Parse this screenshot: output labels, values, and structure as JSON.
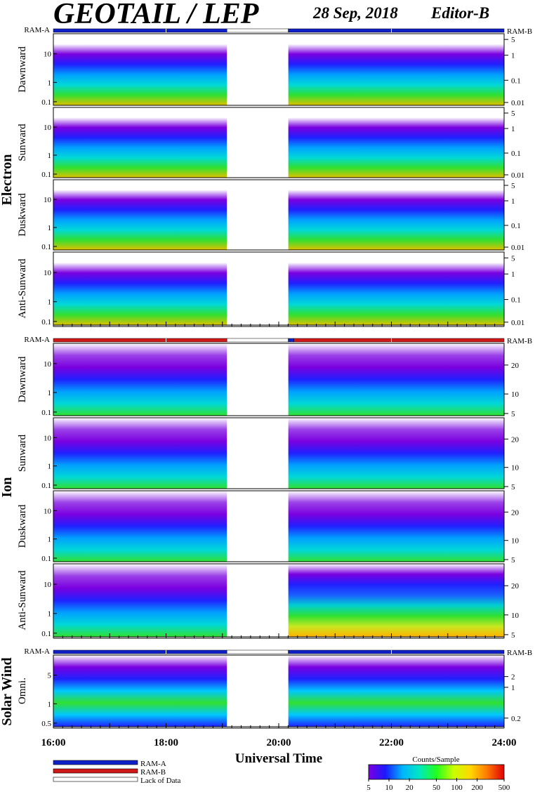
{
  "header": {
    "title": "GEOTAIL / LEP",
    "date": "28 Sep, 2018",
    "editor": "Editor-B"
  },
  "colors": {
    "ram_a": "#1020c8",
    "ram_b": "#d01818",
    "lack": "#ffffff"
  },
  "chart_data": {
    "type": "heatmap",
    "xlabel": "Universal Time",
    "x_ticks": [
      "16:00",
      "18:00",
      "20:00",
      "22:00",
      "24:00"
    ],
    "x_range_hours": [
      16,
      24
    ],
    "data_gap_hours": [
      19.08,
      20.17
    ],
    "groups": [
      {
        "name": "Electron",
        "ram_left": "RAM-A",
        "ram_right": "RAM-B",
        "ram_mode": "ram_a",
        "panels": [
          {
            "label": "Dawnward",
            "y_left_ticks": [
              "10",
              "1",
              "0.1"
            ],
            "y_right_ticks": [
              "5",
              "1",
              "0.1",
              "0.01"
            ]
          },
          {
            "label": "Sunward",
            "y_left_ticks": [
              "10",
              "1",
              "0.1"
            ],
            "y_right_ticks": [
              "5",
              "1",
              "0.1",
              "0.01"
            ]
          },
          {
            "label": "Duskward",
            "y_left_ticks": [
              "10",
              "1",
              "0.1"
            ],
            "y_right_ticks": [
              "5",
              "1",
              "0.1",
              "0.01"
            ]
          },
          {
            "label": "Anti-Sunward",
            "y_left_ticks": [
              "10",
              "1",
              "0.1"
            ],
            "y_right_ticks": [
              "5",
              "1",
              "0.1",
              "0.01"
            ]
          }
        ]
      },
      {
        "name": "Ion",
        "ram_left": "RAM-A",
        "ram_right": "RAM-B",
        "ram_mode": "ram_b",
        "panels": [
          {
            "label": "Dawnward",
            "y_left_ticks": [
              "10",
              "1",
              "0.1"
            ],
            "y_right_ticks": [
              "20",
              "10",
              "5"
            ]
          },
          {
            "label": "Sunward",
            "y_left_ticks": [
              "10",
              "1",
              "0.1"
            ],
            "y_right_ticks": [
              "20",
              "10",
              "5"
            ]
          },
          {
            "label": "Duskward",
            "y_left_ticks": [
              "10",
              "1",
              "0.1"
            ],
            "y_right_ticks": [
              "20",
              "10",
              "5"
            ]
          },
          {
            "label": "Anti-Sunward",
            "y_left_ticks": [
              "10",
              "1",
              "0.1"
            ],
            "y_right_ticks": [
              "20",
              "10",
              "5"
            ]
          }
        ]
      },
      {
        "name": "Solar Wind",
        "ram_left": "RAM-A",
        "ram_right": "RAM-B",
        "ram_mode": "ram_a",
        "panels": [
          {
            "label": "Omni.",
            "y_left_ticks": [
              "5",
              "1",
              "0.5"
            ],
            "y_right_ticks": [
              "2",
              "1",
              "0.2"
            ]
          }
        ]
      }
    ],
    "legend": {
      "ram_a": "RAM-A",
      "ram_b": "RAM-B",
      "lack": "Lack of Data"
    },
    "colorbar": {
      "title": "Counts/Sample",
      "ticks": [
        "5",
        "10",
        "20",
        "50",
        "100",
        "200",
        "500"
      ],
      "colors": [
        "#7a00e0",
        "#1a1aff",
        "#00b4ff",
        "#00e8c0",
        "#20ff20",
        "#c8ff00",
        "#ffd800",
        "#ff7800",
        "#e00000"
      ]
    }
  }
}
